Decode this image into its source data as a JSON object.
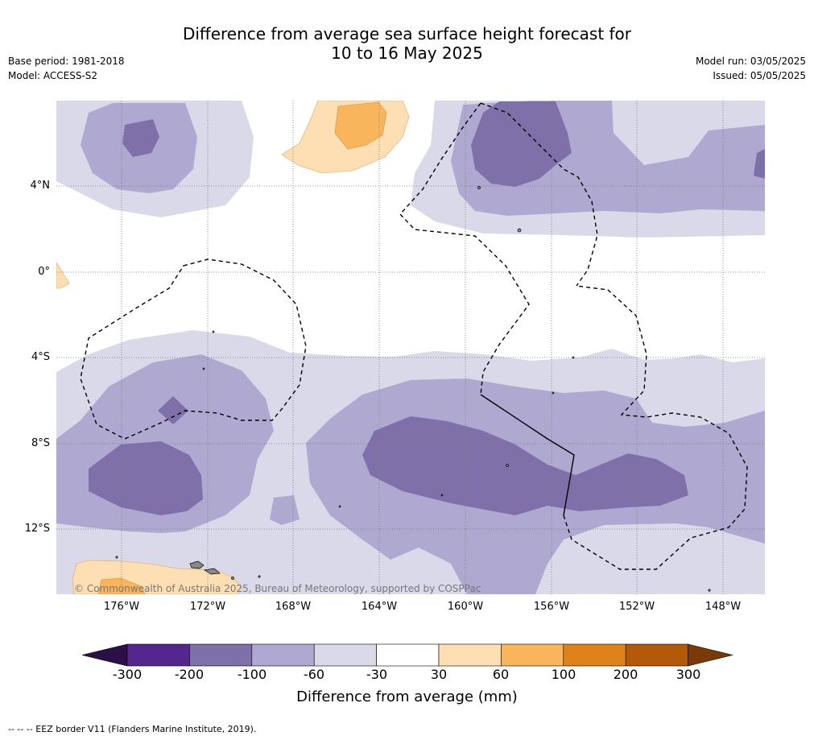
{
  "header": {
    "title_line1": "Difference from average sea surface height forecast for",
    "title_line2": "10 to 16 May 2025",
    "base_period": "Base period: 1981-2018",
    "model": "Model: ACCESS-S2",
    "model_run": "Model run: 03/05/2025",
    "issued": "Issued: 05/05/2025"
  },
  "map": {
    "lat_labels": [
      "4°N",
      "0°",
      "4°S",
      "8°S",
      "12°S"
    ],
    "lon_labels": [
      "176°W",
      "172°W",
      "168°W",
      "164°W",
      "160°W",
      "156°W",
      "152°W",
      "148°W"
    ],
    "copyright": "© Commonwealth of Australia 2025, Bureau of Meteorology, supported by COSPPac",
    "grid": true
  },
  "colorbar": {
    "title": "Difference from average (mm)",
    "tick_labels": [
      "-300",
      "-200",
      "-100",
      "-60",
      "-30",
      "30",
      "60",
      "100",
      "200",
      "300"
    ],
    "colors": {
      "under": "#2c0f47",
      "bins": [
        "#54278f",
        "#7f70aa",
        "#afa8d0",
        "#d9d9ea",
        "#ffffff",
        "#fddfb3",
        "#f9b55c",
        "#e0821a",
        "#b25a09"
      ],
      "over": "#7a3a05"
    }
  },
  "footnote": "--  --  -- EEZ border V11 (Flanders Marine Institute, 2019)."
}
